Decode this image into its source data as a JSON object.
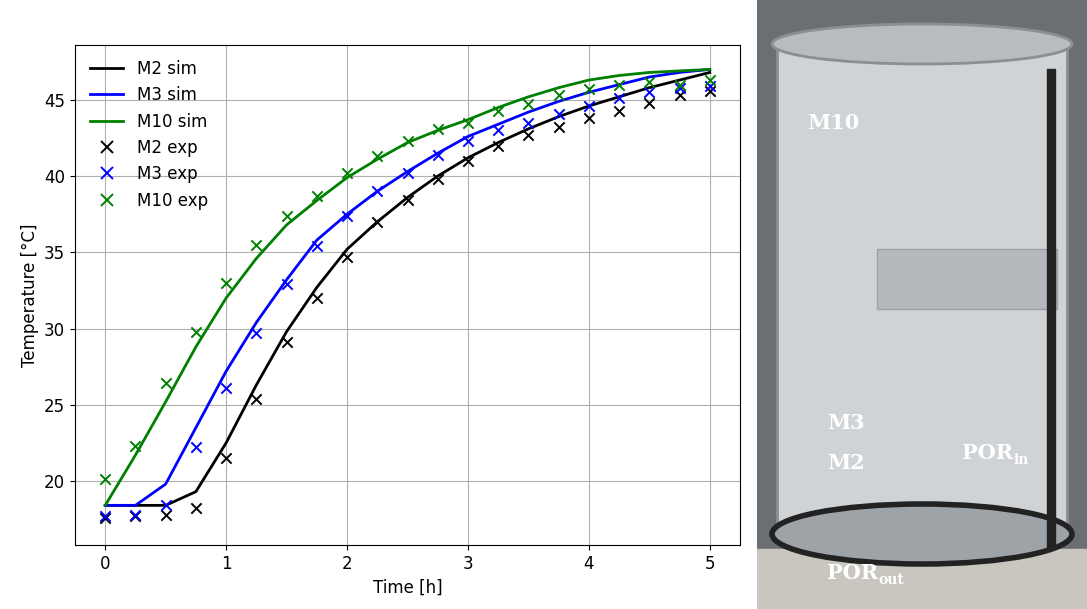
{
  "chart_data": {
    "type": "line",
    "x_label": "Time [h]",
    "y_label": "Temperature [°C]",
    "x": [
      0,
      0.25,
      0.5,
      0.75,
      1,
      1.25,
      1.5,
      1.75,
      2,
      2.25,
      2.5,
      2.75,
      3,
      3.25,
      3.5,
      3.75,
      4,
      4.25,
      4.5,
      4.75,
      5
    ],
    "series": [
      {
        "name": "M2 sim",
        "type": "line",
        "color": "#000000",
        "line_style": "solid",
        "values": [
          18.4,
          18.4,
          18.4,
          19.3,
          22.5,
          26.3,
          29.8,
          32.7,
          35.2,
          37.0,
          38.6,
          40.0,
          41.2,
          42.2,
          43.1,
          43.9,
          44.6,
          45.2,
          45.8,
          46.3,
          46.8
        ]
      },
      {
        "name": "M3 sim",
        "type": "line",
        "color": "#0000ff",
        "line_style": "solid",
        "values": [
          18.4,
          18.4,
          19.8,
          23.5,
          27.2,
          30.4,
          33.2,
          35.8,
          37.5,
          39.0,
          40.3,
          41.5,
          42.6,
          43.4,
          44.2,
          44.9,
          45.5,
          46.0,
          46.5,
          46.8,
          47.0
        ]
      },
      {
        "name": "M10 sim",
        "type": "line",
        "color": "#008000",
        "line_style": "solid",
        "values": [
          18.4,
          21.7,
          25.2,
          28.8,
          32.0,
          34.6,
          36.8,
          38.4,
          39.9,
          41.1,
          42.2,
          43.0,
          43.7,
          44.5,
          45.2,
          45.8,
          46.3,
          46.6,
          46.8,
          46.9,
          47.0
        ]
      },
      {
        "name": "M2 exp",
        "type": "scatter",
        "color": "#000000",
        "marker": "x",
        "values": [
          17.6,
          17.7,
          17.8,
          18.2,
          21.5,
          25.4,
          29.1,
          32.0,
          34.7,
          37.0,
          38.4,
          39.8,
          41.0,
          42.0,
          42.7,
          43.2,
          43.8,
          44.3,
          44.8,
          45.3,
          45.6
        ]
      },
      {
        "name": "M3 exp",
        "type": "scatter",
        "color": "#0000ff",
        "marker": "x",
        "values": [
          17.7,
          17.8,
          18.4,
          22.2,
          26.1,
          29.7,
          32.9,
          35.4,
          37.4,
          39.0,
          40.2,
          41.4,
          42.3,
          43.0,
          43.5,
          44.1,
          44.6,
          45.1,
          45.5,
          45.8,
          45.9
        ]
      },
      {
        "name": "M10 exp",
        "type": "scatter",
        "color": "#008000",
        "marker": "x",
        "values": [
          20.1,
          22.3,
          26.4,
          29.8,
          33.0,
          35.5,
          37.4,
          38.7,
          40.2,
          41.3,
          42.3,
          43.1,
          43.5,
          44.3,
          44.7,
          45.3,
          45.7,
          46.0,
          46.2,
          46.0,
          46.3
        ]
      }
    ],
    "xlim": [
      -0.25,
      5.25
    ],
    "ylim": [
      15.8,
      48.6
    ],
    "xticks": [
      0,
      1,
      2,
      3,
      4,
      5
    ],
    "yticks": [
      20,
      25,
      30,
      35,
      40,
      45
    ],
    "grid": true,
    "legend": "upper left"
  },
  "photo": {
    "labels": [
      {
        "base": "M10",
        "sub": ""
      },
      {
        "base": "M3",
        "sub": ""
      },
      {
        "base": "M2",
        "sub": ""
      },
      {
        "base": "POR",
        "sub": "in"
      },
      {
        "base": "POR",
        "sub": "out"
      }
    ]
  }
}
